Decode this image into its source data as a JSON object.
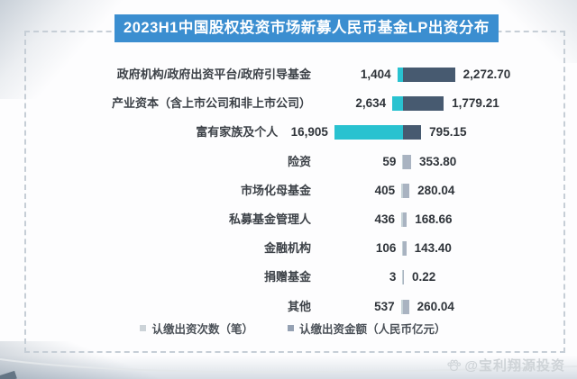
{
  "title": "2023H1中国股权投资市场新募人民币基金LP出资分布",
  "chart_data": {
    "type": "bar",
    "orientation": "horizontal",
    "diverging": true,
    "title": "2023H1中国股权投资市场新募人民币基金LP出资分布",
    "categories": [
      "政府机构/政府出资平台/政府引导基金",
      "产业资本（含上市公司和非上市公司）",
      "富有家族及个人",
      "险资",
      "市场化母基金",
      "私募基金管理人",
      "金融机构",
      "捐赠基金",
      "其他"
    ],
    "series": [
      {
        "name": "认缴出资次数（笔）",
        "side": "left",
        "color": "#29c2d0",
        "muted_color": "#c5d2d7",
        "values": [
          1404,
          2634,
          16905,
          59,
          405,
          436,
          106,
          3,
          537
        ],
        "value_labels": [
          "1,404",
          "2,634",
          "16,905",
          "59",
          "405",
          "436",
          "106",
          "3",
          "537"
        ]
      },
      {
        "name": "认缴出资金额（人民币亿元）",
        "side": "right",
        "color": "#475a70",
        "muted_color": "#a9b3c1",
        "values": [
          2272.7,
          1779.21,
          795.15,
          353.8,
          280.04,
          168.66,
          143.4,
          0.22,
          260.04
        ],
        "value_labels": [
          "2,272.70",
          "1,779.21",
          "795.15",
          "353.80",
          "280.04",
          "168.66",
          "143.40",
          "0.22",
          "260.04"
        ]
      }
    ],
    "legend_position": "bottom",
    "grid": false,
    "axes_visible": false
  },
  "legend": {
    "items": [
      {
        "label": "认缴出资次数（笔）",
        "swatch_color": "#ccd3d8"
      },
      {
        "label": "认缴出资金额（人民币亿元）",
        "swatch_color": "#95a1b3"
      }
    ]
  },
  "watermark": {
    "icon": "paw-icon",
    "text": "@宝利翔源投资"
  },
  "colors": {
    "title_bg": "#3b8ed0",
    "title_text": "#ffffff",
    "frame_dash": "#c6ced6",
    "count_bar": "#29c2d0",
    "amount_bar": "#475a70"
  }
}
